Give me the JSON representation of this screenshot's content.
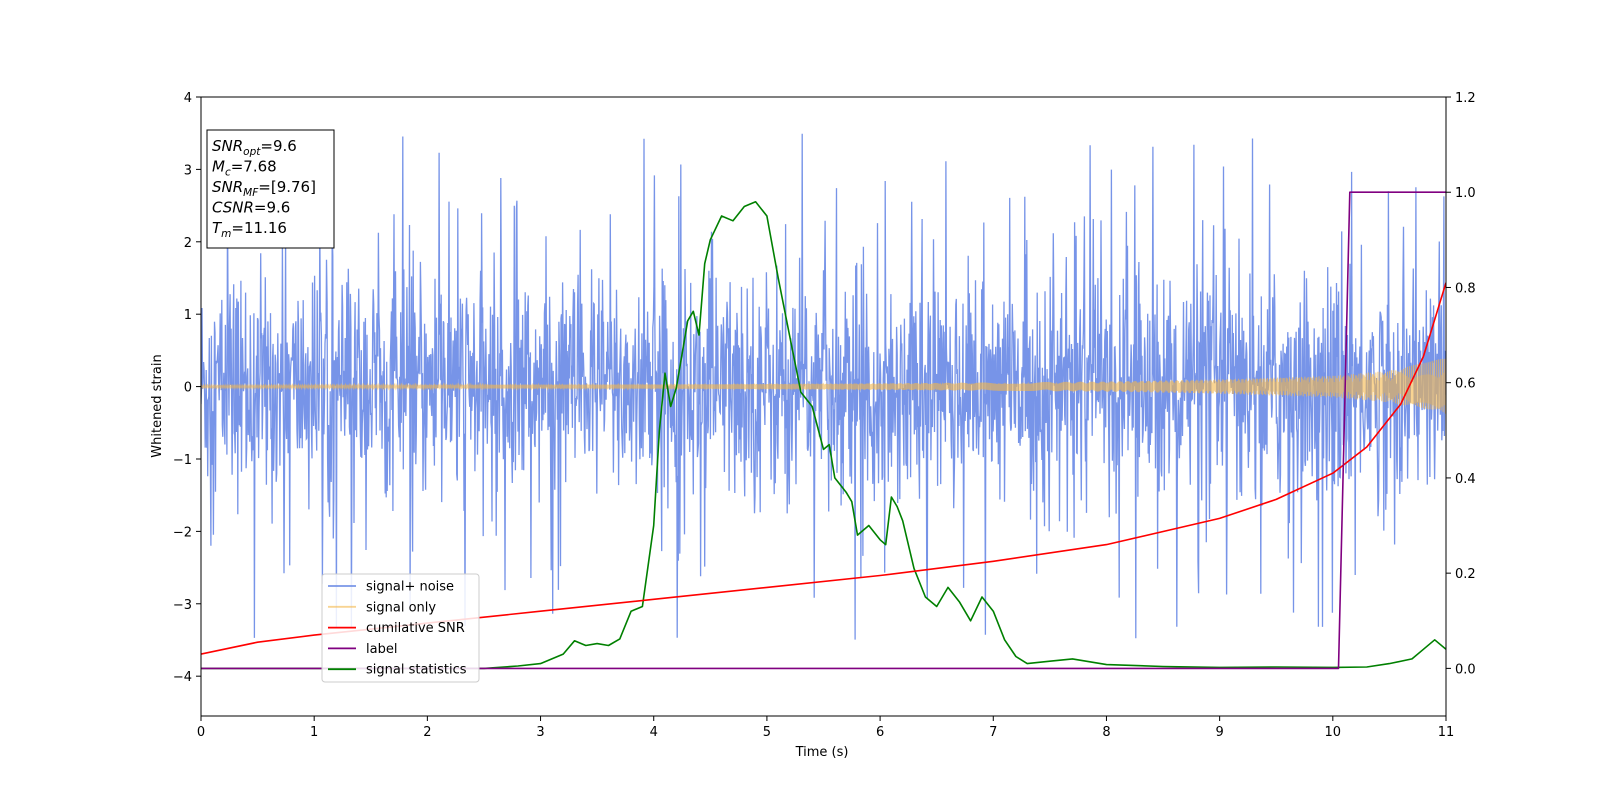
{
  "chart_data": {
    "type": "line",
    "title": "",
    "xlabel": "Time (s)",
    "ylabel": "Whitened strain",
    "y2label": "",
    "xlim": [
      0,
      11
    ],
    "ylim": [
      -4.55,
      4
    ],
    "y2lim": [
      -0.1,
      1.2
    ],
    "grid": false,
    "legend_position": "lower-left",
    "x_ticks": [
      "0",
      "1",
      "2",
      "3",
      "4",
      "5",
      "6",
      "7",
      "8",
      "9",
      "10",
      "11"
    ],
    "y_ticks": [
      {
        "value": 4,
        "label": "4"
      },
      {
        "value": 3,
        "label": "3"
      },
      {
        "value": 2,
        "label": "2"
      },
      {
        "value": 1,
        "label": "1"
      },
      {
        "value": 0,
        "label": "0"
      },
      {
        "value": -1,
        "label": "−1"
      },
      {
        "value": -2,
        "label": "−2"
      },
      {
        "value": -3,
        "label": "−3"
      },
      {
        "value": -4,
        "label": "−4"
      }
    ],
    "y2_ticks": [
      {
        "value": 1.2,
        "label": "1.2"
      },
      {
        "value": 1.0,
        "label": "1.0"
      },
      {
        "value": 0.8,
        "label": "0.8"
      },
      {
        "value": 0.6,
        "label": "0.6"
      },
      {
        "value": 0.4,
        "label": "0.4"
      },
      {
        "value": 0.2,
        "label": "0.2"
      },
      {
        "value": 0.0,
        "label": "0.0"
      }
    ],
    "info_box": [
      {
        "base": "SNR",
        "sub": "opt",
        "value": "=9.6"
      },
      {
        "base": "M",
        "sub": "c",
        "value": "=7.68"
      },
      {
        "base": "SNR",
        "sub": "MF",
        "value": "=[9.76]"
      },
      {
        "base": "CSNR",
        "sub": "",
        "value": "=9.6"
      },
      {
        "base": "T",
        "sub": "m",
        "value": "=11.16"
      }
    ],
    "series": [
      {
        "name": "signal+ noise",
        "axis": "left",
        "color": "#6b8be6",
        "description_values": "whitened noise, approx. uniform amplitude ±1.5 with spikes to ±3.6 over t=0–11 s"
      },
      {
        "name": "signal only",
        "axis": "left",
        "color": "#f5b84a",
        "envelope": {
          "x": [
            0,
            2,
            4,
            6,
            8,
            9,
            10,
            10.5,
            11
          ],
          "amplitude": [
            0.02,
            0.025,
            0.03,
            0.045,
            0.07,
            0.1,
            0.15,
            0.22,
            0.4
          ]
        }
      },
      {
        "name": "cumilative SNR",
        "axis": "right",
        "color": "#ff0000",
        "x": [
          0,
          0.5,
          1,
          2,
          3,
          4,
          5,
          6,
          7,
          8,
          9,
          9.5,
          10,
          10.3,
          10.6,
          10.8,
          11
        ],
        "y": [
          0.03,
          0.055,
          0.07,
          0.095,
          0.12,
          0.145,
          0.17,
          0.195,
          0.225,
          0.26,
          0.315,
          0.355,
          0.41,
          0.465,
          0.555,
          0.655,
          0.81
        ]
      },
      {
        "name": "label",
        "axis": "right",
        "color": "#800080",
        "x": [
          0,
          10.05,
          10.15,
          11
        ],
        "y": [
          0.0,
          0.0,
          1.0,
          1.0
        ]
      },
      {
        "name": "signal statistics",
        "axis": "right",
        "color": "#008000",
        "x": [
          0,
          0.5,
          1,
          1.5,
          2,
          2.5,
          2.8,
          3.0,
          3.2,
          3.3,
          3.4,
          3.5,
          3.6,
          3.7,
          3.8,
          3.9,
          4.0,
          4.05,
          4.1,
          4.15,
          4.2,
          4.3,
          4.35,
          4.4,
          4.45,
          4.5,
          4.6,
          4.7,
          4.8,
          4.9,
          5.0,
          5.1,
          5.2,
          5.3,
          5.4,
          5.5,
          5.55,
          5.6,
          5.7,
          5.75,
          5.8,
          5.9,
          6.0,
          6.05,
          6.1,
          6.15,
          6.2,
          6.3,
          6.4,
          6.5,
          6.6,
          6.7,
          6.8,
          6.9,
          7.0,
          7.1,
          7.2,
          7.3,
          7.5,
          7.7,
          8.0,
          8.5,
          9.0,
          9.5,
          10.0,
          10.3,
          10.5,
          10.7,
          10.8,
          10.9,
          11.0
        ],
        "y": [
          0.0,
          0.0,
          0.0,
          0.0,
          0.0,
          0.0,
          0.005,
          0.01,
          0.03,
          0.058,
          0.048,
          0.052,
          0.048,
          0.062,
          0.12,
          0.13,
          0.3,
          0.5,
          0.62,
          0.55,
          0.59,
          0.73,
          0.75,
          0.7,
          0.85,
          0.9,
          0.95,
          0.94,
          0.97,
          0.98,
          0.95,
          0.82,
          0.7,
          0.58,
          0.55,
          0.46,
          0.47,
          0.4,
          0.37,
          0.35,
          0.28,
          0.3,
          0.27,
          0.26,
          0.36,
          0.34,
          0.31,
          0.21,
          0.15,
          0.13,
          0.17,
          0.14,
          0.1,
          0.15,
          0.12,
          0.06,
          0.025,
          0.01,
          0.015,
          0.02,
          0.008,
          0.004,
          0.002,
          0.003,
          0.002,
          0.003,
          0.01,
          0.02,
          0.04,
          0.06,
          0.04
        ]
      }
    ]
  }
}
